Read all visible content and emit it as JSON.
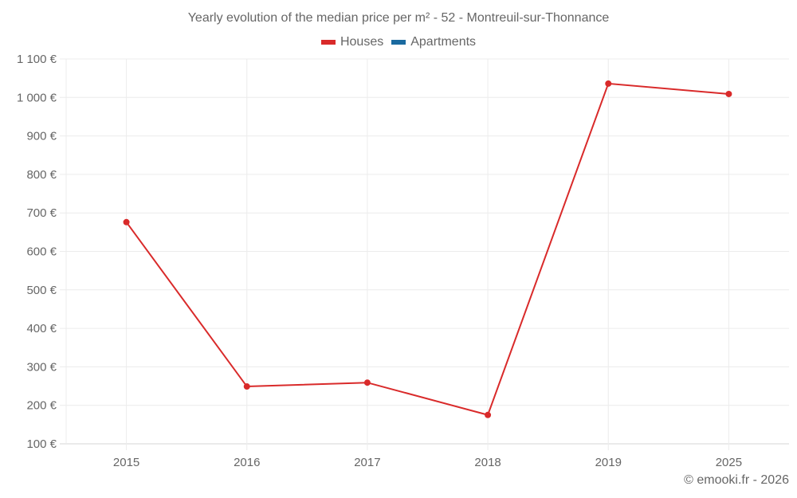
{
  "title": "Yearly evolution of the median price per m² - 52 - Montreuil-sur-Thonnance",
  "legend": [
    {
      "label": "Houses",
      "color": "#d92a2a"
    },
    {
      "label": "Apartments",
      "color": "#1a6aa0"
    }
  ],
  "credit": "© emooki.fr - 2026",
  "chart_data": {
    "type": "line",
    "title": "Yearly evolution of the median price per m² - 52 - Montreuil-sur-Thonnance",
    "categories": [
      "2015",
      "2016",
      "2017",
      "2018",
      "2019",
      "2025"
    ],
    "series": [
      {
        "name": "Houses",
        "color": "#d92a2a",
        "values": [
          676,
          249,
          259,
          175,
          1036,
          1009
        ]
      },
      {
        "name": "Apartments",
        "color": "#1a6aa0",
        "values": [
          null,
          null,
          null,
          null,
          null,
          null
        ]
      }
    ],
    "yticks": [
      "100 €",
      "200 €",
      "300 €",
      "400 €",
      "500 €",
      "600 €",
      "700 €",
      "800 €",
      "900 €",
      "1 000 €",
      "1 100 €"
    ],
    "ylim": [
      100,
      1100
    ],
    "xlabel": "",
    "ylabel": "",
    "grid": true,
    "legend_position": "top"
  }
}
